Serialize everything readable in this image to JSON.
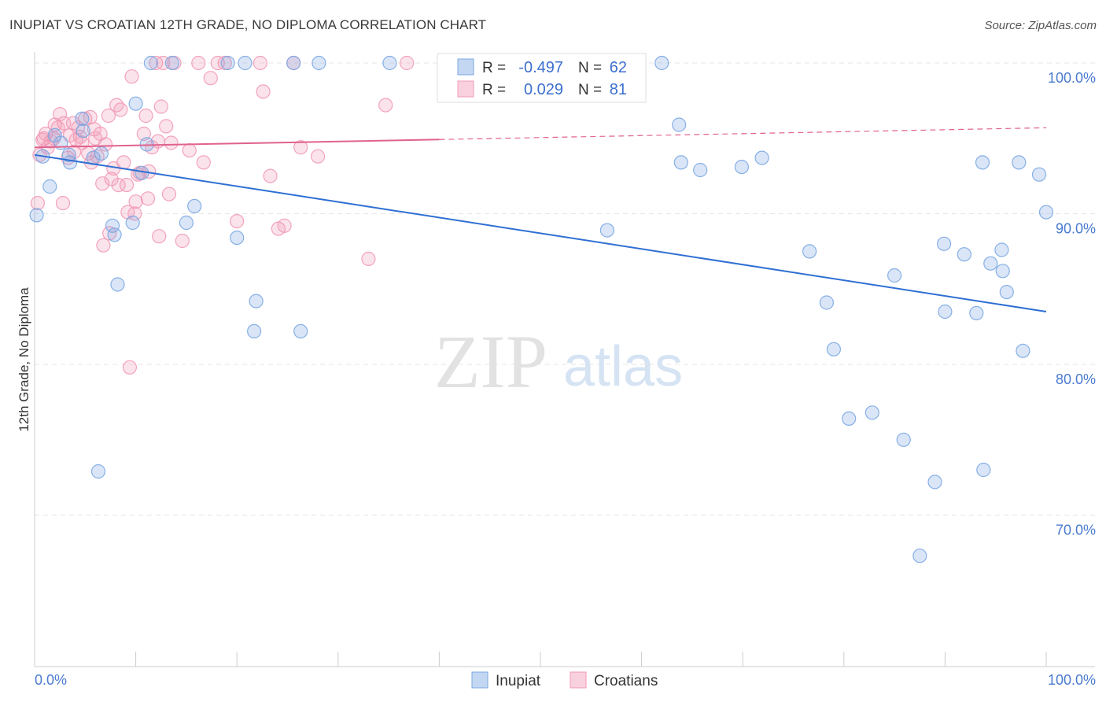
{
  "title": "INUPIAT VS CROATIAN 12TH GRADE, NO DIPLOMA CORRELATION CHART",
  "source": "Source: ZipAtlas.com",
  "watermark": {
    "part1": "ZIP",
    "part2": "atlas"
  },
  "legend_stats": [
    {
      "r_label": "R = ",
      "r_value": "-0.497",
      "n_label": "N = ",
      "n_value": "62",
      "color": "#7ba7e3"
    },
    {
      "r_label": "R = ",
      "r_value": "0.029",
      "n_label": "N = ",
      "n_value": "81",
      "color": "#f29ab6"
    }
  ],
  "chart_data": {
    "type": "scatter",
    "title": "INUPIAT VS CROATIAN 12TH GRADE, NO DIPLOMA CORRELATION CHART",
    "xlabel": "",
    "ylabel": "12th Grade, No Diploma",
    "xlim": [
      0,
      100
    ],
    "ylim": [
      60,
      102
    ],
    "x_tick_labels": [
      "0.0%",
      "100.0%"
    ],
    "y_tick_labels": [
      "100.0%",
      "90.0%",
      "80.0%",
      "70.0%"
    ],
    "y_ticks": [
      100,
      90,
      80,
      70
    ],
    "grid": true,
    "legend_position": "bottom-center",
    "series": [
      {
        "name": "Inupiat",
        "color": "#7ba7e3",
        "line_color": "#2f6fd3",
        "trend": {
          "x": [
            0,
            100
          ],
          "y": [
            93.9,
            83.5
          ],
          "dashed_from": null
        },
        "points": [
          [
            0.2,
            89.9
          ],
          [
            0.8,
            93.8
          ],
          [
            1.5,
            91.8
          ],
          [
            2.0,
            95.2
          ],
          [
            2.6,
            94.7
          ],
          [
            3.4,
            93.9
          ],
          [
            3.5,
            93.4
          ],
          [
            4.8,
            95.5
          ],
          [
            4.7,
            96.3
          ],
          [
            5.8,
            93.7
          ],
          [
            6.6,
            94.0
          ],
          [
            7.7,
            89.2
          ],
          [
            7.9,
            88.6
          ],
          [
            8.2,
            85.3
          ],
          [
            9.7,
            89.4
          ],
          [
            10.0,
            97.3
          ],
          [
            10.6,
            92.7
          ],
          [
            11.1,
            94.6
          ],
          [
            11.5,
            100.0
          ],
          [
            6.3,
            72.9
          ],
          [
            15.8,
            90.5
          ],
          [
            15.0,
            89.4
          ],
          [
            19.1,
            100.0
          ],
          [
            20.0,
            88.4
          ],
          [
            20.8,
            100.0
          ],
          [
            21.9,
            84.2
          ],
          [
            21.7,
            82.2
          ],
          [
            25.6,
            100.0
          ],
          [
            26.3,
            82.2
          ],
          [
            28.1,
            100.0
          ],
          [
            35.1,
            100.0
          ],
          [
            56.6,
            88.9
          ],
          [
            63.7,
            95.9
          ],
          [
            62.0,
            100.0
          ],
          [
            63.9,
            93.4
          ],
          [
            65.8,
            92.9
          ],
          [
            71.9,
            93.7
          ],
          [
            69.9,
            93.1
          ],
          [
            76.6,
            87.5
          ],
          [
            78.3,
            84.1
          ],
          [
            79.0,
            81.0
          ],
          [
            80.5,
            76.4
          ],
          [
            82.8,
            76.8
          ],
          [
            85.0,
            85.9
          ],
          [
            85.9,
            75.0
          ],
          [
            87.5,
            67.3
          ],
          [
            89.0,
            72.2
          ],
          [
            89.9,
            88.0
          ],
          [
            90.0,
            83.5
          ],
          [
            91.9,
            87.3
          ],
          [
            93.1,
            83.4
          ],
          [
            93.8,
            73.0
          ],
          [
            94.5,
            86.7
          ],
          [
            95.7,
            86.2
          ],
          [
            96.1,
            84.8
          ],
          [
            95.6,
            87.6
          ],
          [
            97.3,
            93.4
          ],
          [
            97.7,
            80.9
          ],
          [
            99.3,
            92.6
          ],
          [
            100.0,
            90.1
          ],
          [
            93.7,
            93.4
          ],
          [
            13.6,
            100.0
          ]
        ]
      },
      {
        "name": "Croatians",
        "color": "#f29ab6",
        "line_color": "#e0628f",
        "trend": {
          "x": [
            0,
            100
          ],
          "y": [
            94.4,
            95.7
          ],
          "dashed_from": 40
        },
        "points": [
          [
            0.3,
            90.7
          ],
          [
            0.5,
            93.9
          ],
          [
            0.8,
            94.9
          ],
          [
            1.1,
            95.3
          ],
          [
            1.6,
            94.8
          ],
          [
            2.0,
            95.9
          ],
          [
            2.3,
            95.7
          ],
          [
            2.5,
            96.6
          ],
          [
            2.8,
            90.7
          ],
          [
            3.3,
            93.7
          ],
          [
            3.5,
            95.2
          ],
          [
            3.8,
            96.0
          ],
          [
            4.1,
            94.9
          ],
          [
            4.3,
            95.7
          ],
          [
            4.7,
            94.7
          ],
          [
            5.0,
            96.3
          ],
          [
            5.3,
            94.0
          ],
          [
            5.6,
            93.4
          ],
          [
            5.9,
            95.6
          ],
          [
            6.2,
            93.8
          ],
          [
            6.5,
            95.3
          ],
          [
            6.8,
            87.9
          ],
          [
            7.0,
            94.6
          ],
          [
            7.3,
            96.5
          ],
          [
            7.6,
            92.3
          ],
          [
            7.8,
            93.0
          ],
          [
            8.1,
            97.2
          ],
          [
            8.5,
            96.9
          ],
          [
            8.8,
            93.4
          ],
          [
            9.1,
            91.9
          ],
          [
            9.4,
            79.8
          ],
          [
            9.6,
            99.1
          ],
          [
            9.9,
            90.0
          ],
          [
            10.2,
            92.6
          ],
          [
            10.4,
            92.7
          ],
          [
            10.8,
            95.3
          ],
          [
            11.0,
            96.5
          ],
          [
            11.3,
            92.8
          ],
          [
            11.6,
            94.4
          ],
          [
            12.0,
            100.0
          ],
          [
            12.3,
            88.5
          ],
          [
            12.5,
            97.1
          ],
          [
            12.7,
            100.0
          ],
          [
            13.0,
            95.8
          ],
          [
            13.3,
            91.3
          ],
          [
            13.5,
            94.7
          ],
          [
            13.8,
            100.0
          ],
          [
            14.6,
            88.2
          ],
          [
            15.3,
            94.2
          ],
          [
            16.2,
            100.0
          ],
          [
            16.7,
            93.4
          ],
          [
            17.4,
            99.0
          ],
          [
            18.1,
            100.0
          ],
          [
            18.8,
            100.0
          ],
          [
            20.0,
            89.5
          ],
          [
            22.3,
            100.0
          ],
          [
            22.6,
            98.1
          ],
          [
            23.3,
            92.5
          ],
          [
            24.1,
            89.0
          ],
          [
            24.7,
            89.2
          ],
          [
            25.6,
            100.0
          ],
          [
            26.3,
            94.4
          ],
          [
            28.0,
            93.8
          ],
          [
            33.0,
            87.0
          ],
          [
            34.7,
            97.2
          ],
          [
            36.8,
            100.0
          ],
          [
            0.9,
            95.0
          ],
          [
            1.3,
            94.4
          ],
          [
            1.9,
            95.0
          ],
          [
            2.9,
            96.0
          ],
          [
            3.9,
            94.1
          ],
          [
            4.5,
            95.1
          ],
          [
            5.5,
            96.4
          ],
          [
            6.0,
            95.0
          ],
          [
            6.7,
            92.0
          ],
          [
            7.4,
            88.7
          ],
          [
            8.3,
            91.9
          ],
          [
            9.2,
            90.1
          ],
          [
            10.0,
            90.8
          ],
          [
            11.2,
            91.0
          ],
          [
            12.2,
            94.8
          ]
        ]
      }
    ]
  }
}
